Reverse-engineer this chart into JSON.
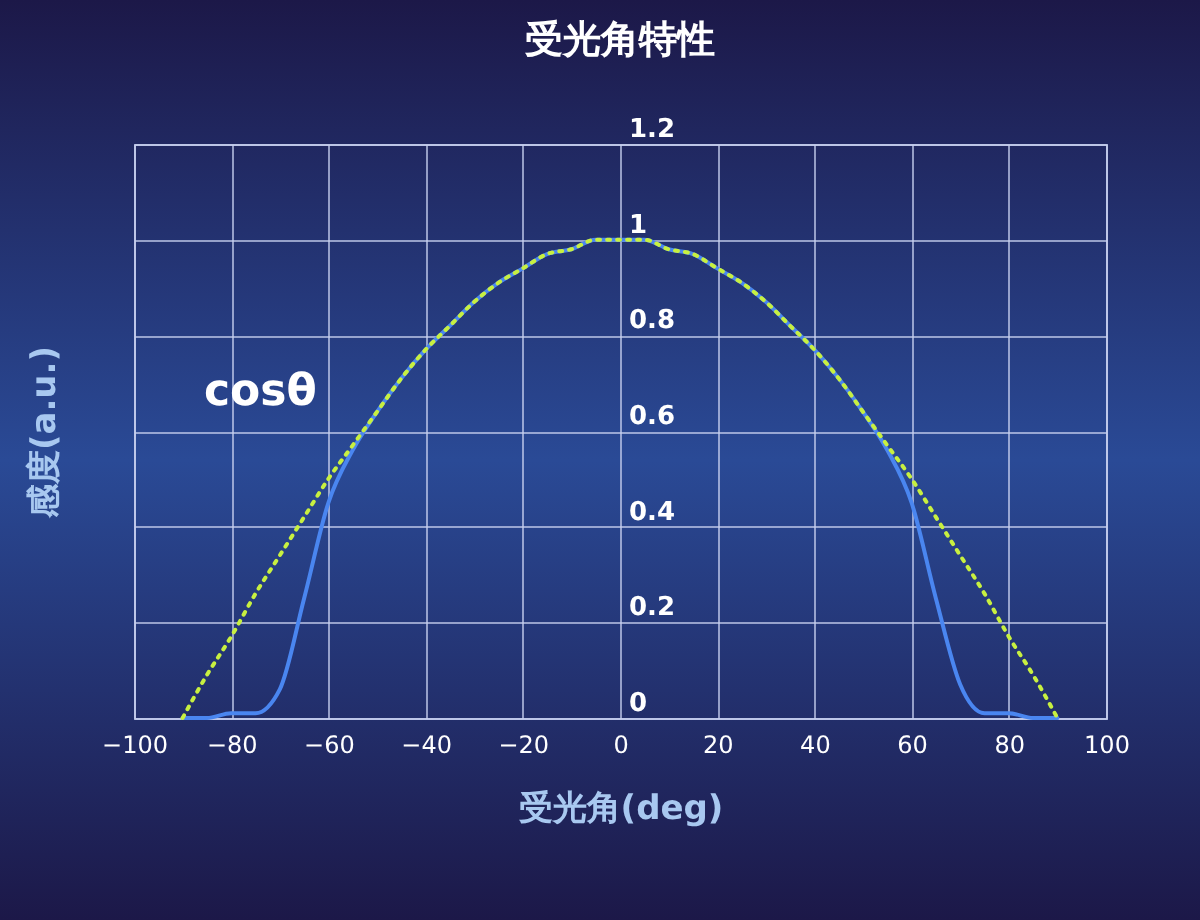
{
  "chart_data": {
    "type": "line",
    "title": "受光角特性",
    "xlabel": "受光角(deg)",
    "ylabel": "感度(a.u.)",
    "x": [
      -90,
      -85,
      -80,
      -75,
      -70,
      -65,
      -60,
      -55,
      -50,
      -45,
      -40,
      -35,
      -30,
      -25,
      -20,
      -15,
      -10,
      -5,
      0,
      5,
      10,
      15,
      20,
      25,
      30,
      35,
      40,
      45,
      50,
      55,
      60,
      65,
      70,
      75,
      80,
      85,
      90
    ],
    "series": [
      {
        "color": "#4a86f0",
        "line_style": "solid",
        "values": [
          0,
          0,
          0.01,
          0.01,
          0.06,
          0.25,
          0.45,
          0.56,
          0.64,
          0.71,
          0.77,
          0.82,
          0.87,
          0.91,
          0.94,
          0.97,
          0.98,
          1.0,
          1.0,
          1.0,
          0.98,
          0.97,
          0.94,
          0.91,
          0.87,
          0.82,
          0.77,
          0.71,
          0.64,
          0.56,
          0.45,
          0.25,
          0.07,
          0.01,
          0.01,
          0,
          0
        ]
      },
      {
        "color": "#c8f040",
        "line_style": "dotted",
        "values": [
          0,
          0.09,
          0.17,
          0.26,
          0.34,
          0.42,
          0.5,
          0.57,
          0.64,
          0.71,
          0.77,
          0.82,
          0.87,
          0.91,
          0.94,
          0.97,
          0.98,
          1.0,
          1.0,
          1.0,
          0.98,
          0.97,
          0.94,
          0.91,
          0.87,
          0.82,
          0.77,
          0.71,
          0.64,
          0.57,
          0.5,
          0.42,
          0.34,
          0.26,
          0.17,
          0.09,
          0
        ]
      }
    ],
    "annotations": [
      "cosθ"
    ],
    "xlim": [
      -100,
      100
    ],
    "xticks": [
      -100,
      -80,
      -60,
      -40,
      -20,
      0,
      20,
      40,
      60,
      80,
      100
    ],
    "ylim": [
      0,
      1.2
    ],
    "yticks": [
      0,
      0.2,
      0.4,
      0.6,
      0.8,
      1,
      1.2
    ],
    "grid": true,
    "legend": false
  }
}
